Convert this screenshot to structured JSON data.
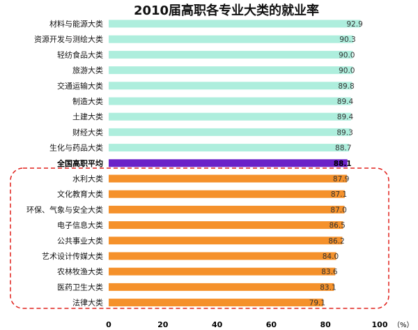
{
  "chart_data": {
    "type": "bar",
    "orientation": "horizontal",
    "title": "2010届高职各专业大类的就业率",
    "categories": [
      "材料与能源大类",
      "资源开发与测绘大类",
      "轻纺食品大类",
      "旅游大类",
      "交通运输大类",
      "制造大类",
      "土建大类",
      "财经大类",
      "生化与药品大类",
      "全国高职平均",
      "水利大类",
      "文化教育大类",
      "环保、气象与安全大类",
      "电子信息大类",
      "公共事业大类",
      "艺术设计传媒大类",
      "农林牧渔大类",
      "医药卫生大类",
      "法律大类"
    ],
    "values": [
      92.9,
      90.3,
      90.0,
      90.0,
      89.8,
      89.4,
      89.4,
      89.3,
      88.7,
      88.1,
      87.9,
      87.1,
      87.0,
      86.5,
      86.2,
      84.0,
      83.6,
      83.1,
      79.1
    ],
    "value_labels": [
      "92.9",
      "90.3",
      "90.0",
      "90.0",
      "89.8",
      "89.4",
      "89.4",
      "89.3",
      "88.7",
      "88.1",
      "87.9",
      "87.1",
      "87.0",
      "86.5",
      "86.2",
      "84.0",
      "83.6",
      "83.1",
      "79.1"
    ],
    "groups": [
      "above",
      "above",
      "above",
      "above",
      "above",
      "above",
      "above",
      "above",
      "above",
      "average",
      "below",
      "below",
      "below",
      "below",
      "below",
      "below",
      "below",
      "below",
      "below"
    ],
    "xlim": [
      0,
      100
    ],
    "xticks": [
      "0",
      "20",
      "40",
      "60",
      "80",
      "100"
    ],
    "xtick_values": [
      0,
      20,
      40,
      60,
      80,
      100
    ],
    "unit": "（%）",
    "grid": false,
    "colors": {
      "above": "#aeeedd",
      "average": "#6a22c8",
      "below": "#f5912b",
      "highlight_box": "#e0201c"
    }
  }
}
